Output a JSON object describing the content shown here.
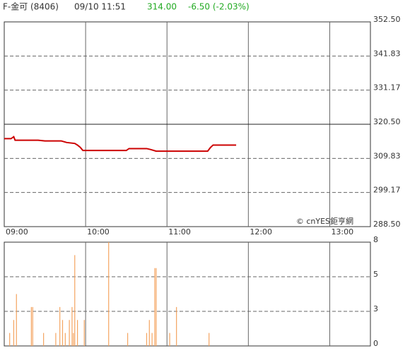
{
  "header": {
    "symbol": "F-金可 (8406)",
    "datetime": "09/10 11:51",
    "price": "314.00",
    "change": "-6.50 (-2.03%)"
  },
  "chart_data": [
    {
      "type": "line",
      "watermark": "© cnYES鉅亨網",
      "color": "#cc0000",
      "x": [
        0,
        5,
        7,
        8,
        25,
        30,
        42,
        46,
        52,
        54,
        56,
        58,
        90,
        92,
        105,
        108,
        112,
        150,
        152,
        154,
        171
      ],
      "series": [
        {
          "name": "price",
          "color": "#cc0000",
          "values": [
            316.0,
            316.0,
            316.6,
            315.5,
            315.5,
            315.3,
            315.3,
            314.8,
            314.5,
            314.0,
            313.3,
            312.3,
            312.3,
            312.9,
            312.9,
            312.6,
            312.1,
            312.1,
            313.2,
            314.0,
            314.0
          ]
        }
      ],
      "xlim": [
        0,
        270
      ],
      "xticks": [
        {
          "value": 0,
          "label": "09:00"
        },
        {
          "value": 60,
          "label": "10:00"
        },
        {
          "value": 120,
          "label": "11:00"
        },
        {
          "value": 180,
          "label": "12:00"
        },
        {
          "value": 240,
          "label": "13:00"
        }
      ],
      "ylim": [
        288.5,
        352.5
      ],
      "yticks": [
        {
          "value": 288.5,
          "label": "288.50"
        },
        299.17,
        309.83,
        {
          "value": 320.5,
          "label": "320.50"
        },
        331.17,
        341.83,
        {
          "value": 352.5,
          "label": "352.50"
        }
      ],
      "reference": 320.5
    },
    {
      "type": "bar",
      "color": "#f4a460",
      "x": [
        4,
        7,
        9,
        20,
        21,
        29,
        38,
        41,
        43,
        45,
        48,
        50,
        51,
        52,
        54,
        59,
        77,
        91,
        105,
        107,
        109,
        111,
        112,
        122,
        127,
        151
      ],
      "values": [
        1,
        2,
        4,
        3,
        3,
        1,
        1,
        3,
        2,
        1,
        2,
        3,
        1,
        7,
        2,
        2,
        8,
        1,
        1,
        2,
        1,
        6,
        6,
        1,
        3,
        1
      ],
      "xlim": [
        0,
        270
      ],
      "ylim": [
        0,
        8
      ],
      "yticks": [
        0,
        {
          "value": 2.67,
          "label": "3"
        },
        {
          "value": 5.33,
          "label": "5"
        },
        8
      ]
    }
  ]
}
